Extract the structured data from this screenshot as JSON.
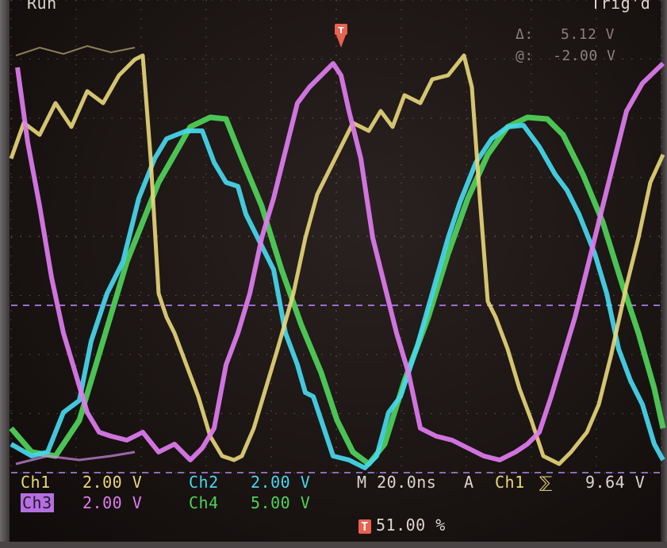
{
  "status": {
    "run_label": "Run",
    "trig_label": "Trig'd"
  },
  "cursor": {
    "delta_label": "Δ:",
    "delta_value": "5.12 V",
    "at_label": "@:",
    "at_value": "-2.00 V"
  },
  "channels": [
    {
      "name": "Ch1",
      "scale": "2.00 V",
      "color": "#e9d77a"
    },
    {
      "name": "Ch2",
      "scale": "2.00 V",
      "color": "#46d8ee"
    },
    {
      "name": "Ch3",
      "scale": "2.00 V",
      "color": "#e07cf0"
    },
    {
      "name": "Ch4",
      "scale": "5.00 V",
      "color": "#4fd25a"
    }
  ],
  "timebase": {
    "label": "M 20.0ns",
    "mode": "A",
    "source": "Ch1",
    "slope": "⅀",
    "level": "9.64 V"
  },
  "trigger_position": {
    "label": "51.00 %"
  },
  "colors": {
    "grid": "#8f8a8a",
    "cursor_line": "#9b6ecf",
    "background": "#1b1513"
  }
}
